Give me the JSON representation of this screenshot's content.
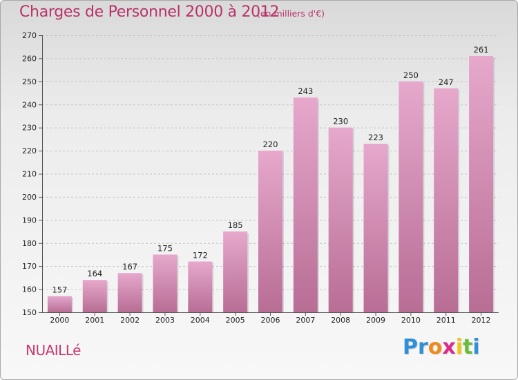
{
  "title": "Charges de Personnel 2000 à 2012",
  "subtitle": "(en milliers d'€)",
  "commune": "NUAILLé",
  "logo": {
    "letters": [
      "P",
      "r",
      "o",
      "x",
      "i",
      "t",
      "i"
    ],
    "colors": [
      "#2f8fd8",
      "#2f8fd8",
      "#f08a1c",
      "#d92c8a",
      "#f0c419",
      "#6cbb3c",
      "#2f8fd8"
    ]
  },
  "colors": {
    "bar_top": "#e6a8cc",
    "bar_bottom": "#b86d95",
    "title": "#b8336a"
  },
  "chart_data": {
    "type": "bar",
    "title": "Charges de Personnel 2000 à 2012",
    "subtitle": "(en milliers d'€)",
    "categories": [
      "2000",
      "2001",
      "2002",
      "2003",
      "2004",
      "2005",
      "2006",
      "2007",
      "2008",
      "2009",
      "2010",
      "2011",
      "2012"
    ],
    "values": [
      157,
      164,
      167,
      175,
      172,
      185,
      220,
      243,
      230,
      223,
      250,
      247,
      261
    ],
    "ylim": [
      150,
      270
    ],
    "yticks": [
      150,
      160,
      170,
      180,
      190,
      200,
      210,
      220,
      230,
      240,
      250,
      260,
      270
    ],
    "grid": "horizontal dashed",
    "xlabel": "",
    "ylabel": ""
  }
}
